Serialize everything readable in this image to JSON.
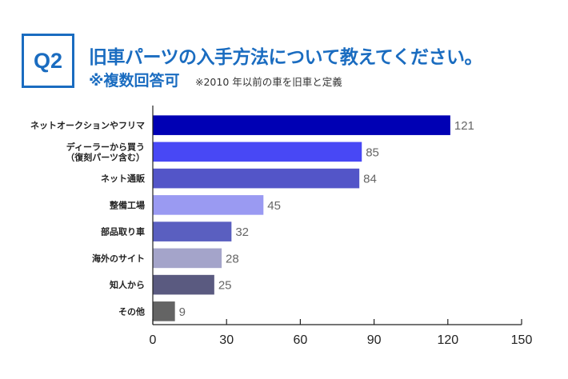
{
  "header": {
    "question_badge": "Q2",
    "title": "旧車パーツの入手方法について教えてください。",
    "subtitle": "※複数回答可",
    "note": "※2010 年以前の車を旧車と定義"
  },
  "colors": {
    "brand": "#1a6cc0"
  },
  "chart_data": {
    "type": "bar",
    "orientation": "horizontal",
    "title": "旧車パーツの入手方法について教えてください。",
    "subtitle": "※複数回答可",
    "xlabel": "",
    "ylabel": "",
    "xlim": [
      0,
      150
    ],
    "x_ticks": [
      0,
      30,
      60,
      90,
      120,
      150
    ],
    "x_tick_labels": [
      "0",
      "30",
      "60",
      "90",
      "120",
      "150"
    ],
    "grid": false,
    "legend": "none",
    "categories": [
      [
        "ネットオークションやフリマ"
      ],
      [
        "ディーラーから買う",
        "（復刻パーツ含む）"
      ],
      [
        "ネット通販"
      ],
      [
        "整備工場"
      ],
      [
        "部品取り車"
      ],
      [
        "海外のサイト"
      ],
      [
        "知人から"
      ],
      [
        "その他"
      ]
    ],
    "values": [
      121,
      85,
      84,
      45,
      32,
      28,
      25,
      9
    ],
    "bar_colors": [
      "#0000b4",
      "#4848f5",
      "#5355c8",
      "#9a9af2",
      "#5a5fc0",
      "#a4a4ca",
      "#5a5a80",
      "#646464"
    ]
  }
}
